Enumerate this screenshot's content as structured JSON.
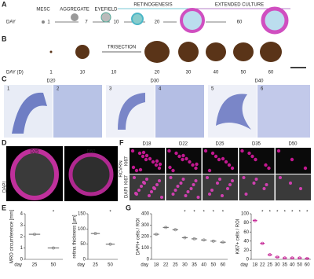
{
  "panel_labels": [
    "A",
    "B",
    "C",
    "D",
    "E",
    "F",
    "G"
  ],
  "a": {
    "day_label": "DAY",
    "stages": [
      "MESC",
      "AGGREGATE",
      "EYEFIELD"
    ],
    "days": [
      "1",
      "7",
      "10",
      "20",
      "60"
    ],
    "phases": [
      "RETINOGENESIS",
      "EXTENDED CULTURE"
    ]
  },
  "b": {
    "day_label": "DAY (D)",
    "days": [
      "1",
      "10",
      "10",
      "20",
      "30",
      "40",
      "50",
      "60"
    ],
    "note": "TRISECTION"
  },
  "c": {
    "headers": [
      "D20",
      "D30",
      "D40"
    ],
    "subpanels": [
      "1",
      "2",
      "3",
      "4",
      "5",
      "6"
    ]
  },
  "d": {
    "days": [
      "D25",
      "D50"
    ],
    "stains": [
      "DAPI",
      "RCVRN"
    ]
  },
  "f": {
    "days": [
      "D18",
      "D22",
      "D25",
      "D35",
      "D50"
    ],
    "row_labels": [
      "Ki67",
      "DAPI",
      "Ki67"
    ]
  },
  "e": {
    "charts": [
      {
        "y_label": "MRO circumference [mm]",
        "x_label": "day",
        "categories": [
          "25",
          "50"
        ],
        "values": [
          2.2,
          1.0
        ],
        "ylim": [
          0,
          4
        ],
        "yticks": [
          0,
          1,
          2,
          3,
          4
        ],
        "significance": [
          null,
          "*"
        ],
        "color": "#777777"
      },
      {
        "y_label": "retina thickness [µm]",
        "x_label": "day",
        "categories": [
          "25",
          "50"
        ],
        "values": [
          85,
          50
        ],
        "ylim": [
          0,
          150
        ],
        "yticks": [
          0,
          50,
          100,
          150
        ],
        "significance": [
          null,
          "*"
        ],
        "color": "#777777"
      }
    ]
  },
  "g": {
    "charts": [
      {
        "y_label": "DAPI+ cells / ROI",
        "x_label": "day",
        "categories": [
          "18",
          "22",
          "25",
          "30",
          "35",
          "40",
          "50",
          "60"
        ],
        "values": [
          220,
          280,
          260,
          190,
          180,
          170,
          160,
          150
        ],
        "ylim": [
          0,
          400
        ],
        "yticks": [
          0,
          100,
          200,
          300,
          400
        ],
        "significance": [
          null,
          null,
          null,
          "*",
          "*",
          "*",
          "*",
          "*"
        ],
        "color": "#777777"
      },
      {
        "y_label": "Ki67+ cells / ROI",
        "x_label": "day",
        "categories": [
          "18",
          "22",
          "25",
          "30",
          "35",
          "40",
          "50",
          "60"
        ],
        "values": [
          85,
          35,
          10,
          5,
          3,
          3,
          3,
          2
        ],
        "ylim": [
          0,
          100
        ],
        "yticks": [
          0,
          20,
          40,
          60,
          80,
          100
        ],
        "significance": [
          null,
          "*",
          "*",
          "*",
          "*",
          "*",
          "*",
          "*"
        ],
        "color": "#c2188f"
      }
    ]
  }
}
